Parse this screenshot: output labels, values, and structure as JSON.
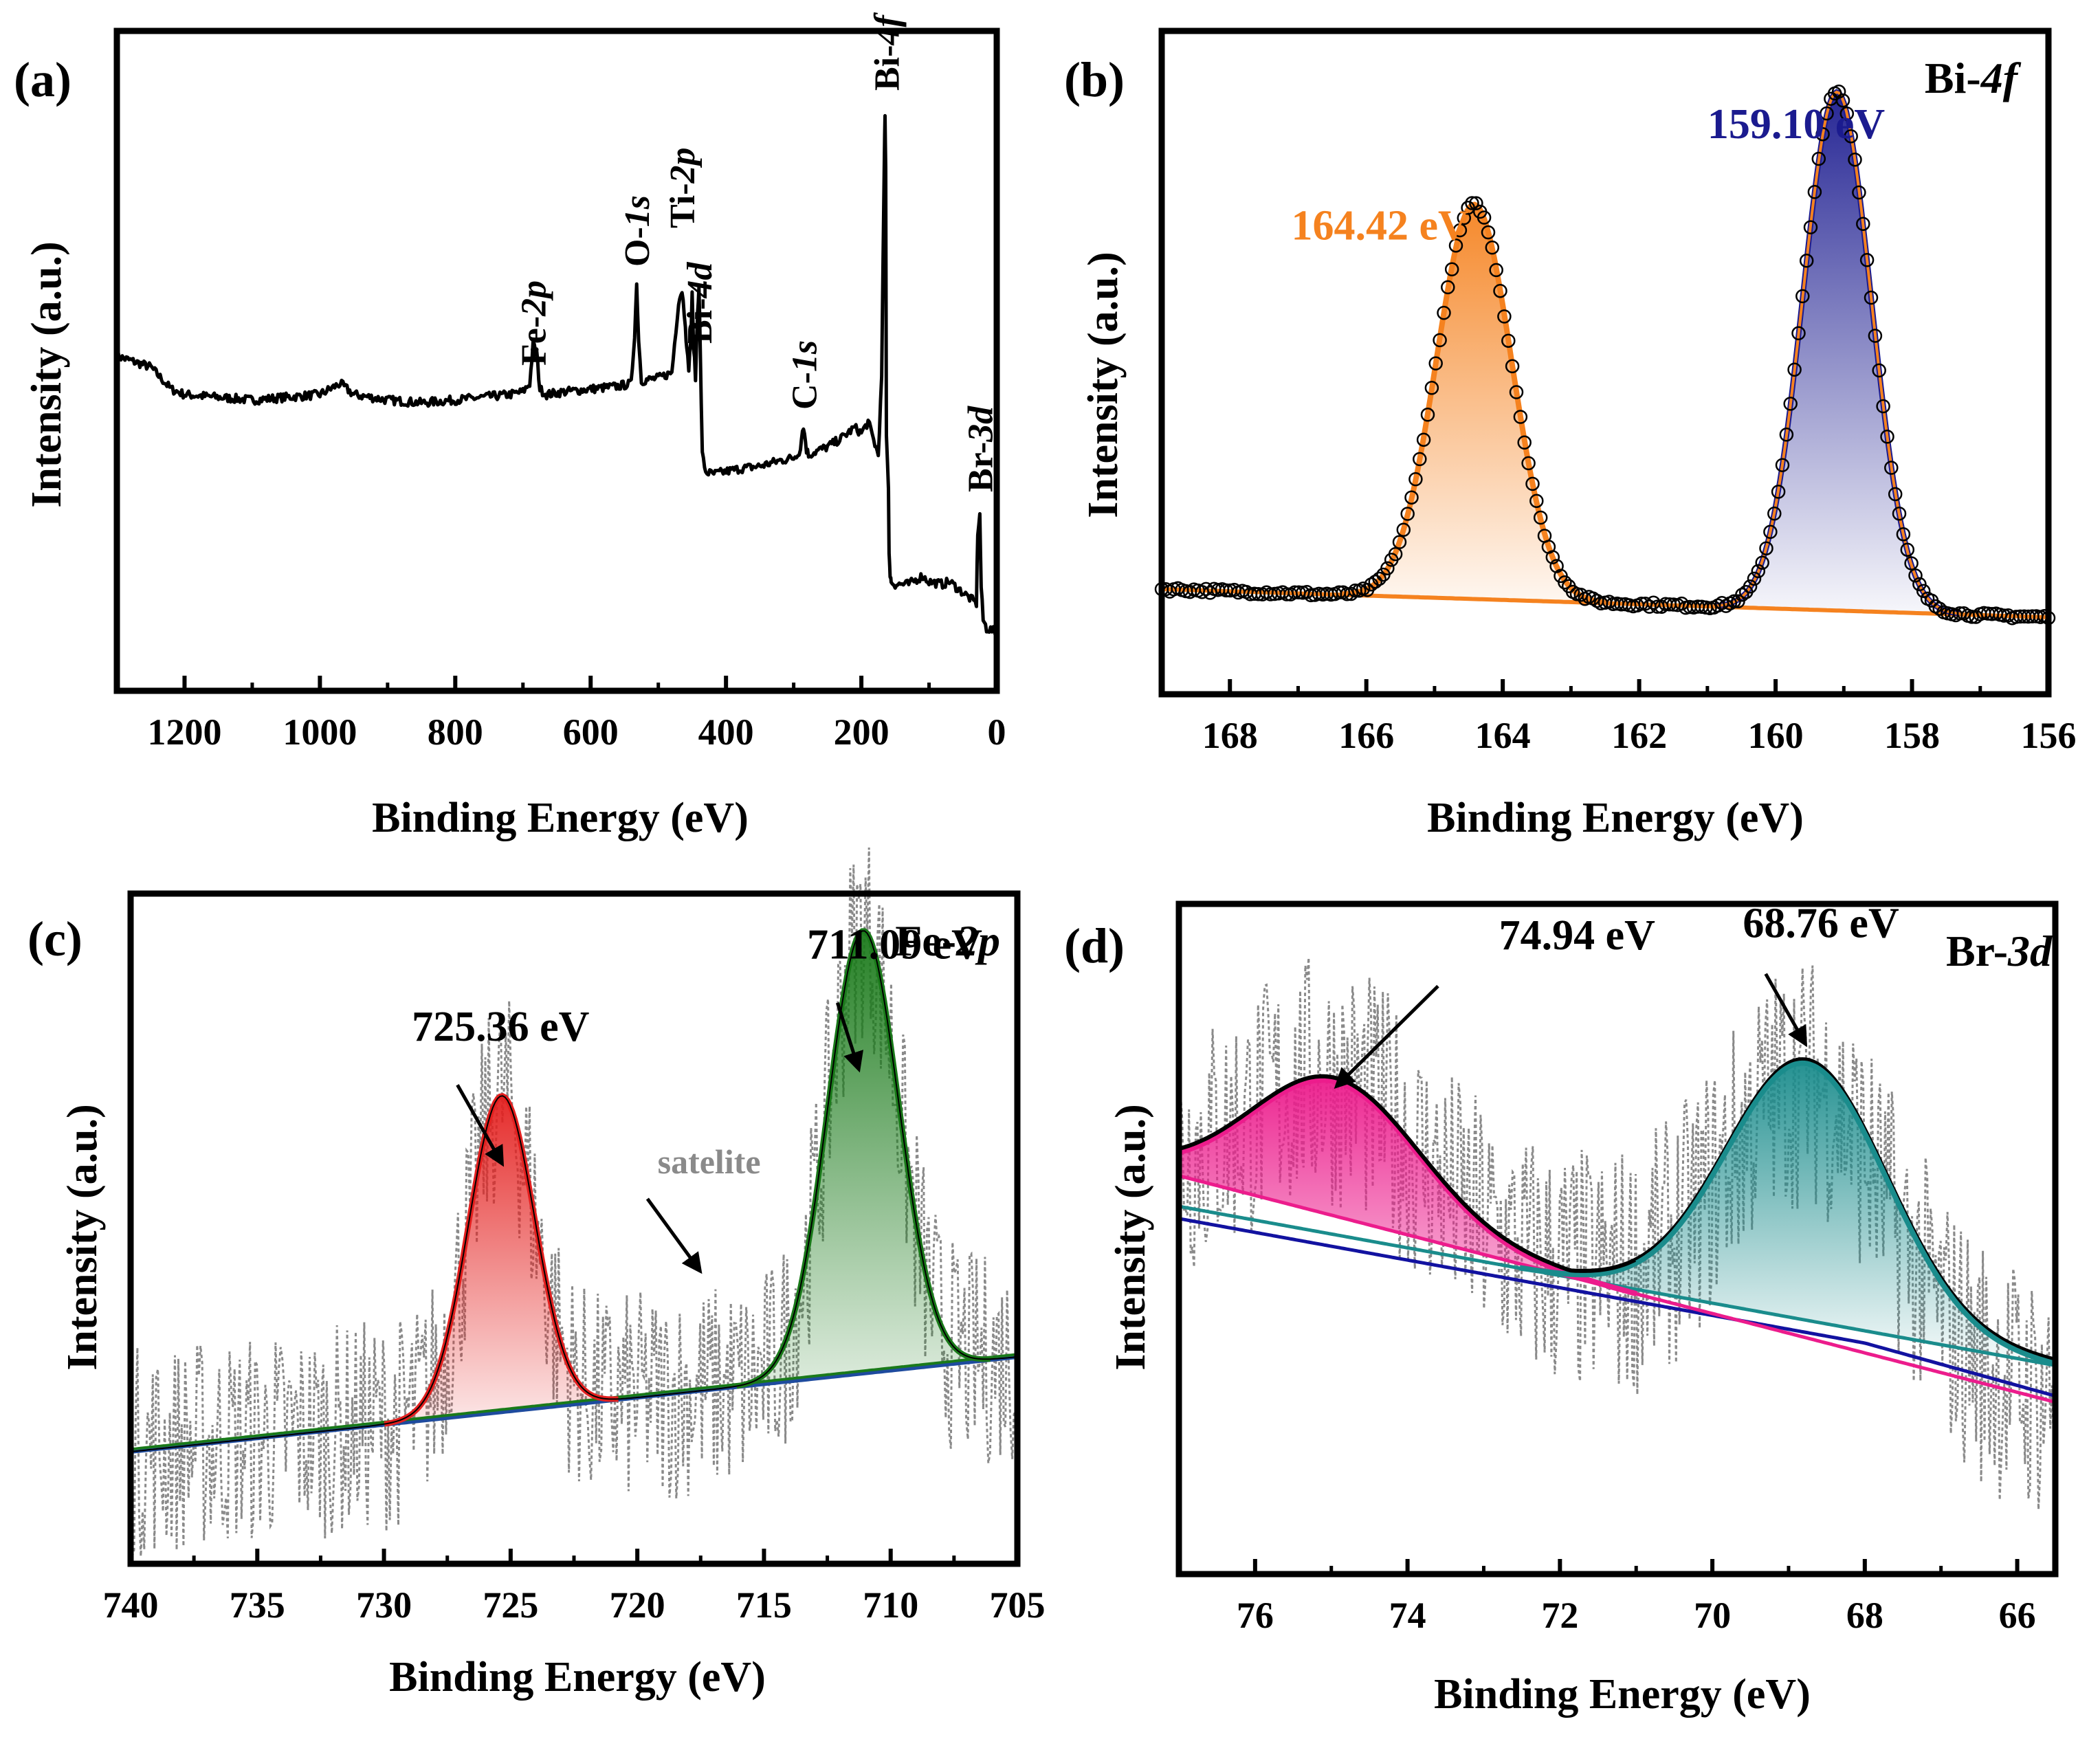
{
  "figure": {
    "colors": {
      "axis": "#000000",
      "data": "#000000",
      "bi_orange": "#f5821f",
      "bi_blue": "#1b1b8f",
      "fe_red": "#e4201f",
      "fe_green": "#1a7a1a",
      "fe_base_blue": "#1e4b9e",
      "br_pink": "#ec1c8c",
      "br_teal": "#1a8c8c",
      "br_blue": "#1212a0",
      "noise": "#8a8a8a",
      "satellite_text": "#8a8a8a"
    }
  },
  "chart_data": [
    {
      "id": "a",
      "panel_label": "(a)",
      "type": "line",
      "title": "",
      "xlabel": "Binding Energy (eV)",
      "ylabel": "Intensity (a.u.)",
      "xlim": [
        1300,
        0
      ],
      "xticks": [
        "1200",
        "1000",
        "800",
        "600",
        "400",
        "200",
        "0"
      ],
      "xtick_values": [
        1200,
        1000,
        800,
        600,
        400,
        200,
        0
      ],
      "ylim": [
        0,
        100
      ],
      "series": [
        {
          "name": "survey",
          "x": [
            1300,
            1250,
            1220,
            1200,
            1150,
            1100,
            1050,
            1000,
            970,
            950,
            900,
            850,
            800,
            760,
            720,
            700,
            690,
            685,
            680,
            675,
            665,
            640,
            600,
            560,
            540,
            535,
            532,
            529,
            525,
            500,
            480,
            470,
            465,
            460,
            458,
            455,
            452,
            450,
            448,
            445,
            442,
            440,
            438,
            435,
            430,
            420,
            400,
            380,
            350,
            320,
            300,
            290,
            287,
            284,
            281,
            278,
            270,
            250,
            230,
            210,
            200,
            190,
            180,
            175,
            170,
            166,
            165,
            164,
            163,
            160,
            159,
            158,
            157,
            156,
            150,
            130,
            110,
            100,
            80,
            70,
            50,
            40,
            30,
            28,
            25,
            23,
            20,
            15,
            5,
            0
          ],
          "y": [
            54,
            52,
            48,
            47,
            46.5,
            46,
            46.5,
            47,
            49,
            47,
            46,
            45.5,
            46,
            46.5,
            47,
            47.5,
            49,
            56,
            55,
            48,
            47,
            47.5,
            48,
            48.5,
            49,
            58,
            67,
            57,
            49.5,
            50,
            51,
            64,
            66,
            60,
            55,
            52,
            57,
            65,
            56,
            50,
            62,
            67,
            55,
            36,
            33,
            32.5,
            33,
            33.5,
            34,
            35,
            35.5,
            37,
            41,
            40,
            37,
            36,
            36.5,
            37.5,
            39,
            41,
            40,
            42,
            38,
            36,
            50,
            91,
            97,
            88,
            40,
            30,
            18,
            15,
            14,
            13,
            12.5,
            12.5,
            14,
            13,
            12.5,
            13,
            11,
            10,
            9,
            22,
            25,
            12,
            6,
            4.5,
            4,
            3.5
          ]
        }
      ],
      "annotations": [
        {
          "text_parts": [
            [
              "Fe-",
              false
            ],
            [
              "2p",
              true
            ]
          ],
          "x": 685,
          "y": 50
        },
        {
          "text_parts": [
            [
              "O-",
              false
            ],
            [
              "1s",
              true
            ]
          ],
          "x": 532,
          "y": 68
        },
        {
          "text_parts": [
            [
              "Ti-",
              false
            ],
            [
              "2p",
              true
            ]
          ],
          "x": 465,
          "y": 75
        },
        {
          "text_parts": [
            [
              "Bi-",
              false
            ],
            [
              "4d",
              true
            ]
          ],
          "x": 440,
          "y": 54
        },
        {
          "text_parts": [
            [
              "C-",
              false
            ],
            [
              "1s",
              true
            ]
          ],
          "x": 285,
          "y": 42
        },
        {
          "text_parts": [
            [
              "Bi-",
              false
            ],
            [
              "4f",
              true
            ]
          ],
          "x": 163,
          "y": 100
        },
        {
          "text_parts": [
            [
              "Br-",
              false
            ],
            [
              "3d",
              true
            ]
          ],
          "x": 25,
          "y": 27
        }
      ]
    },
    {
      "id": "b",
      "panel_label": "(b)",
      "type": "line",
      "title": "Bi-4f",
      "title_parts": [
        [
          "Bi-",
          false
        ],
        [
          "4f",
          true
        ]
      ],
      "xlabel": "Binding Energy (eV)",
      "ylabel": "Intensity (a.u.)",
      "xlim": [
        169,
        156
      ],
      "xticks": [
        "168",
        "166",
        "164",
        "162",
        "160",
        "158",
        "156"
      ],
      "xtick_values": [
        168,
        166,
        164,
        162,
        160,
        158,
        156
      ],
      "ylim": [
        0,
        100
      ],
      "baseline": {
        "x": [
          169,
          156
        ],
        "y": [
          15,
          10
        ]
      },
      "peaks": [
        {
          "name": "164.42 eV",
          "center": 164.42,
          "height": 70,
          "sigma": 0.55,
          "color_key": "bi_orange"
        },
        {
          "name": "159.10 eV",
          "center": 159.1,
          "height": 92,
          "sigma": 0.5,
          "color_key": "bi_blue"
        }
      ],
      "peak_labels": [
        {
          "text": "164.42 eV",
          "color_key": "bi_orange",
          "x": 167.1,
          "y": 77
        },
        {
          "text": "159.10 eV",
          "color_key": "bi_blue",
          "x": 161.0,
          "y": 95
        }
      ]
    },
    {
      "id": "c",
      "panel_label": "(c)",
      "type": "line",
      "title": "Fe-2p",
      "title_parts": [
        [
          "Fe-",
          false
        ],
        [
          "2p",
          true
        ]
      ],
      "xlabel": "Binding Energy (eV)",
      "ylabel": "Intensity (a.u.)",
      "xlim": [
        740,
        705
      ],
      "xticks": [
        "740",
        "735",
        "730",
        "725",
        "720",
        "715",
        "710",
        "705"
      ],
      "xtick_values": [
        740,
        735,
        730,
        725,
        720,
        715,
        710,
        705
      ],
      "ylim": [
        0,
        100
      ],
      "baseline": {
        "x": [
          740,
          705
        ],
        "y": [
          15,
          30
        ]
      },
      "peaks": [
        {
          "name": "725.36 eV",
          "center": 725.36,
          "height": 50,
          "sigma": 1.3,
          "color_key": "fe_red"
        },
        {
          "name": "711.09 eV",
          "center": 711.09,
          "height": 70,
          "sigma": 1.4,
          "color_key": "fe_green"
        }
      ],
      "peak_labels": [
        {
          "text": "725.36 eV",
          "color_key": "axis",
          "x": 728.9,
          "y": 80
        },
        {
          "text": "711.09 eV",
          "color_key": "axis",
          "x": 713.3,
          "y": 93
        }
      ],
      "arrows": [
        {
          "from": [
            727.1,
            73
          ],
          "to": [
            725.4,
            61
          ]
        },
        {
          "from": [
            712.1,
            86
          ],
          "to": [
            711.3,
            76
          ]
        },
        {
          "from": [
            719.6,
            55
          ],
          "to": [
            717.6,
            44
          ]
        }
      ],
      "note": {
        "text": "satelite",
        "x": 719.2,
        "y": 59,
        "color_key": "satellite_text"
      }
    },
    {
      "id": "d",
      "panel_label": "(d)",
      "type": "line",
      "title": "Br-3d",
      "title_parts": [
        [
          "Br-",
          false
        ],
        [
          "3d",
          true
        ]
      ],
      "xlabel": "Binding Energy (eV)",
      "ylabel": "Intensity (a.u.)",
      "xlim": [
        77,
        65.5
      ],
      "xticks": [
        "76",
        "74",
        "72",
        "70",
        "68",
        "66"
      ],
      "xtick_values": [
        76,
        74,
        72,
        70,
        68,
        66
      ],
      "ylim": [
        0,
        100
      ],
      "baseline_pink": {
        "x": [
          77,
          65.5
        ],
        "y": [
          55,
          18
        ]
      },
      "baseline_teal": {
        "x": [
          77,
          65.5
        ],
        "y": [
          50,
          24
        ]
      },
      "peaks": [
        {
          "name": "74.94 eV",
          "center": 74.94,
          "height": 22,
          "sigma": 1.1,
          "color_key": "br_pink"
        },
        {
          "name": "68.76 eV",
          "center": 68.76,
          "height": 42,
          "sigma": 1.05,
          "color_key": "br_teal"
        }
      ],
      "peak_labels": [
        {
          "text": "74.94 eV",
          "color_key": "axis",
          "x": 72.8,
          "y": 92
        },
        {
          "text": "68.76 eV",
          "color_key": "axis",
          "x": 69.6,
          "y": 94
        }
      ],
      "arrows": [
        {
          "from": [
            73.6,
            86
          ],
          "to": [
            74.9,
            70
          ]
        },
        {
          "from": [
            69.3,
            88
          ],
          "to": [
            68.8,
            77
          ]
        }
      ]
    }
  ]
}
